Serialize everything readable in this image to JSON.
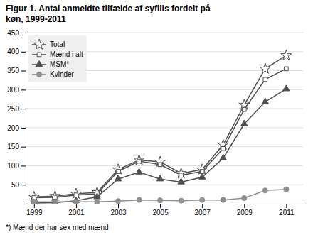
{
  "chart_data": {
    "type": "line",
    "title": "Figur 1. Antal anmeldte tilfælde af syfilis fordelt på",
    "subtitle": "køn,  1999-2011",
    "annotations": [
      "*) Mænd der har sex med mænd"
    ],
    "x": [
      1999,
      2000,
      2001,
      2002,
      2003,
      2004,
      2005,
      2006,
      2007,
      2008,
      2009,
      2010,
      2011
    ],
    "series": [
      {
        "name": "Total",
        "color": "#505050",
        "marker": "star-open",
        "values": [
          18,
          20,
          26,
          30,
          90,
          115,
          110,
          80,
          90,
          155,
          260,
          355,
          390
        ]
      },
      {
        "name": "Mænd i alt",
        "color": "#505050",
        "marker": "square-open",
        "values": [
          16,
          17,
          23,
          26,
          85,
          112,
          103,
          75,
          85,
          145,
          248,
          327,
          355
        ]
      },
      {
        "name": "MSM*",
        "color": "#505050",
        "marker": "triangle",
        "values": [
          2,
          3,
          8,
          18,
          65,
          83,
          65,
          57,
          70,
          120,
          210,
          268,
          302
        ]
      },
      {
        "name": "Kvinder",
        "color": "#909090",
        "marker": "circle",
        "values": [
          5,
          5,
          5,
          5,
          7,
          10,
          9,
          8,
          10,
          10,
          15,
          35,
          38
        ]
      }
    ],
    "xlim": [
      1998.6,
      2011.8
    ],
    "xticks": [
      1999,
      2001,
      2003,
      2005,
      2007,
      2009,
      2011
    ],
    "ylim": [
      0,
      450
    ],
    "yticks": [
      50,
      100,
      150,
      200,
      250,
      300,
      350,
      400,
      450
    ],
    "grid": true,
    "legend": "upper left"
  }
}
